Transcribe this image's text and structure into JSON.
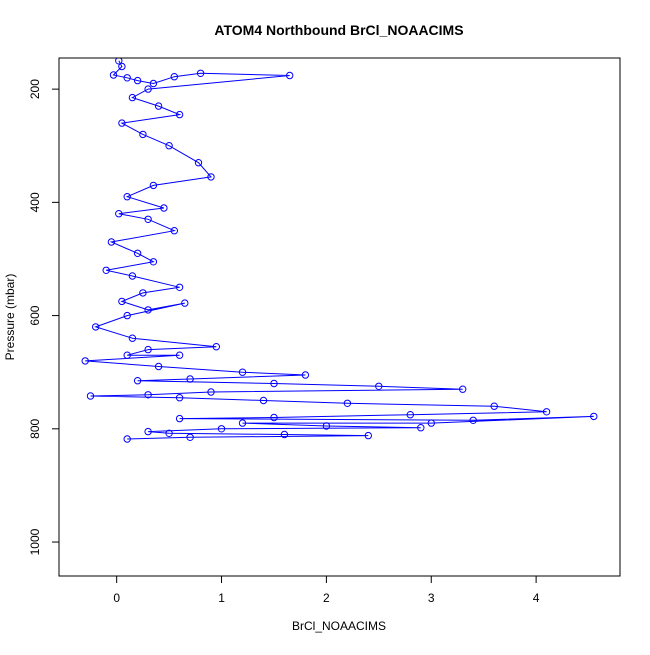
{
  "chart_data": {
    "type": "scatter",
    "title": "ATOM4 Northbound BrCl_NOAACIMS",
    "xlabel": "BrCl_NOAACIMS",
    "ylabel": "Pressure (mbar)",
    "xlim": [
      -0.55,
      4.8
    ],
    "ylim": [
      1060,
      145
    ],
    "y_reversed": true,
    "xticks": [
      0,
      1,
      2,
      3,
      4
    ],
    "yticks": [
      200,
      400,
      600,
      800,
      1000
    ],
    "grid": false,
    "legend": "none",
    "marker": "open-circle",
    "connect_points": true,
    "color": "#0000ff",
    "series": [
      {
        "x": [
          0.02,
          0.05,
          -0.03,
          0.1,
          0.2,
          0.35,
          0.55,
          0.8,
          1.65,
          0.3,
          0.15,
          0.4,
          0.6,
          0.05,
          0.25,
          0.5,
          0.78,
          0.9,
          0.35,
          0.1,
          0.45,
          0.02,
          0.3,
          0.55,
          -0.05,
          0.2,
          0.35,
          -0.1,
          0.15,
          0.6,
          0.25,
          0.05,
          0.3,
          0.65,
          0.1,
          -0.2,
          0.15,
          0.95,
          0.3,
          0.1,
          0.6,
          -0.3,
          0.4,
          1.2,
          1.8,
          0.7,
          0.2,
          1.5,
          2.5,
          3.3,
          0.9,
          0.3,
          -0.25,
          0.6,
          1.4,
          2.2,
          3.6,
          4.1,
          2.8,
          1.5,
          0.6,
          3.4,
          4.55,
          3.0,
          1.2,
          2.0,
          2.9,
          1.0,
          0.3,
          0.5,
          1.6,
          2.4,
          0.7,
          0.1
        ],
        "y": [
          150,
          160,
          175,
          180,
          185,
          190,
          178,
          172,
          176,
          200,
          215,
          230,
          245,
          260,
          280,
          300,
          330,
          355,
          370,
          390,
          410,
          420,
          430,
          450,
          470,
          490,
          505,
          520,
          530,
          550,
          560,
          575,
          590,
          578,
          600,
          620,
          640,
          655,
          660,
          670,
          670,
          680,
          690,
          700,
          705,
          712,
          715,
          720,
          725,
          730,
          735,
          740,
          742,
          745,
          750,
          755,
          760,
          770,
          775,
          780,
          782,
          785,
          778,
          790,
          790,
          795,
          798,
          800,
          805,
          808,
          810,
          812,
          815,
          818
        ]
      }
    ]
  }
}
